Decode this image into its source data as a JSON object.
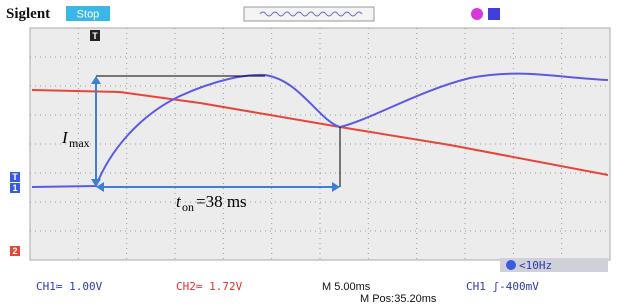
{
  "header": {
    "brand": "Siglent",
    "status": "Stop"
  },
  "markers": {
    "trigger": "T",
    "ch1": "1",
    "ch2": "2"
  },
  "annotations": {
    "imax": {
      "symbol": "I",
      "subscript": "max"
    },
    "ton": {
      "symbol": "t",
      "subscript": "on",
      "text": "=38 ms"
    }
  },
  "footer": {
    "ch1": "CH1≔ 1.00V",
    "ch2": "CH2≔ 1.72V",
    "timebase": "M 5.00ms",
    "position": "M Pos:35.20ms",
    "trigger": "CH1 ʃ-400mV",
    "freq": "<10Hz"
  }
}
